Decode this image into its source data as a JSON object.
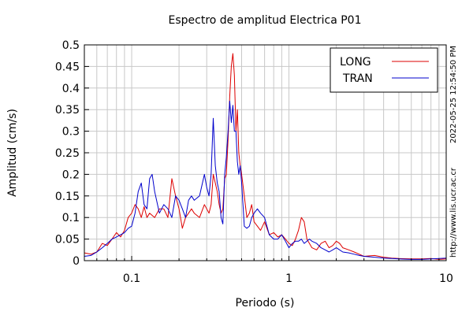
{
  "chart_data": {
    "type": "line",
    "title": "Espectro de amplitud Electrica P01",
    "xlabel": "Periodo (s)",
    "ylabel": "Amplitud (cm/s)",
    "x_scale": "log",
    "xlim": [
      0.05,
      10
    ],
    "ylim": [
      0,
      0.5
    ],
    "x_ticks": [
      {
        "value": 0.1,
        "label": "0.1"
      },
      {
        "value": 1,
        "label": "1"
      },
      {
        "value": 10,
        "label": "10"
      }
    ],
    "y_ticks": [
      {
        "value": 0,
        "label": "0"
      },
      {
        "value": 0.05,
        "label": "0.05"
      },
      {
        "value": 0.1,
        "label": "0.1"
      },
      {
        "value": 0.15,
        "label": "0.15"
      },
      {
        "value": 0.2,
        "label": "0.2"
      },
      {
        "value": 0.25,
        "label": "0.25"
      },
      {
        "value": 0.3,
        "label": "0.3"
      },
      {
        "value": 0.35,
        "label": "0.35"
      },
      {
        "value": 0.4,
        "label": "0.4"
      },
      {
        "value": 0.45,
        "label": "0.45"
      },
      {
        "value": 0.5,
        "label": "0.5"
      }
    ],
    "grid": true,
    "legend_position": "top-right",
    "series": [
      {
        "name": "LONG",
        "color": "#dd0000",
        "x": [
          0.05,
          0.055,
          0.06,
          0.065,
          0.07,
          0.075,
          0.08,
          0.085,
          0.09,
          0.095,
          0.1,
          0.105,
          0.11,
          0.115,
          0.12,
          0.125,
          0.13,
          0.135,
          0.14,
          0.15,
          0.16,
          0.17,
          0.18,
          0.19,
          0.2,
          0.21,
          0.22,
          0.23,
          0.24,
          0.25,
          0.27,
          0.29,
          0.3,
          0.31,
          0.32,
          0.33,
          0.34,
          0.35,
          0.36,
          0.37,
          0.38,
          0.39,
          0.4,
          0.41,
          0.42,
          0.43,
          0.44,
          0.45,
          0.46,
          0.47,
          0.48,
          0.49,
          0.5,
          0.52,
          0.54,
          0.56,
          0.58,
          0.6,
          0.63,
          0.66,
          0.7,
          0.75,
          0.8,
          0.85,
          0.9,
          0.95,
          1.0,
          1.05,
          1.1,
          1.15,
          1.2,
          1.25,
          1.3,
          1.35,
          1.4,
          1.5,
          1.6,
          1.7,
          1.8,
          1.9,
          2.0,
          2.1,
          2.2,
          2.4,
          2.6,
          2.8,
          3.0,
          3.5,
          4.0,
          4.5,
          5.0,
          6.0,
          7.0,
          8.0,
          9.0,
          10.0
        ],
        "values": [
          0.018,
          0.015,
          0.02,
          0.04,
          0.035,
          0.05,
          0.065,
          0.055,
          0.07,
          0.1,
          0.11,
          0.13,
          0.12,
          0.1,
          0.125,
          0.1,
          0.11,
          0.105,
          0.1,
          0.12,
          0.12,
          0.1,
          0.19,
          0.15,
          0.12,
          0.075,
          0.1,
          0.11,
          0.12,
          0.11,
          0.1,
          0.13,
          0.12,
          0.11,
          0.13,
          0.2,
          0.18,
          0.16,
          0.13,
          0.11,
          0.12,
          0.19,
          0.2,
          0.28,
          0.38,
          0.45,
          0.48,
          0.43,
          0.3,
          0.35,
          0.25,
          0.22,
          0.2,
          0.15,
          0.1,
          0.11,
          0.13,
          0.09,
          0.08,
          0.07,
          0.09,
          0.06,
          0.065,
          0.055,
          0.06,
          0.05,
          0.04,
          0.035,
          0.05,
          0.07,
          0.1,
          0.09,
          0.05,
          0.04,
          0.03,
          0.025,
          0.04,
          0.045,
          0.03,
          0.035,
          0.045,
          0.04,
          0.03,
          0.025,
          0.02,
          0.015,
          0.01,
          0.012,
          0.008,
          0.006,
          0.005,
          0.004,
          0.004,
          0.005,
          0.003,
          0.004
        ]
      },
      {
        "name": "TRAN",
        "color": "#0000cc",
        "x": [
          0.05,
          0.055,
          0.06,
          0.065,
          0.07,
          0.075,
          0.08,
          0.085,
          0.09,
          0.095,
          0.1,
          0.105,
          0.11,
          0.115,
          0.12,
          0.125,
          0.13,
          0.135,
          0.14,
          0.15,
          0.16,
          0.17,
          0.18,
          0.19,
          0.2,
          0.21,
          0.22,
          0.23,
          0.24,
          0.25,
          0.27,
          0.29,
          0.3,
          0.31,
          0.32,
          0.33,
          0.34,
          0.35,
          0.36,
          0.37,
          0.38,
          0.39,
          0.4,
          0.41,
          0.42,
          0.43,
          0.44,
          0.45,
          0.46,
          0.47,
          0.48,
          0.49,
          0.5,
          0.52,
          0.54,
          0.56,
          0.58,
          0.6,
          0.63,
          0.66,
          0.7,
          0.75,
          0.8,
          0.85,
          0.9,
          0.95,
          1.0,
          1.05,
          1.1,
          1.15,
          1.2,
          1.25,
          1.3,
          1.35,
          1.4,
          1.5,
          1.6,
          1.7,
          1.8,
          1.9,
          2.0,
          2.1,
          2.2,
          2.4,
          2.6,
          2.8,
          3.0,
          3.5,
          4.0,
          4.5,
          5.0,
          6.0,
          7.0,
          8.0,
          9.0,
          10.0
        ],
        "values": [
          0.01,
          0.012,
          0.02,
          0.03,
          0.04,
          0.05,
          0.055,
          0.06,
          0.065,
          0.075,
          0.08,
          0.11,
          0.16,
          0.18,
          0.13,
          0.12,
          0.19,
          0.2,
          0.16,
          0.11,
          0.13,
          0.12,
          0.1,
          0.15,
          0.14,
          0.12,
          0.1,
          0.14,
          0.15,
          0.14,
          0.15,
          0.2,
          0.17,
          0.15,
          0.2,
          0.33,
          0.22,
          0.18,
          0.16,
          0.1,
          0.085,
          0.2,
          0.24,
          0.3,
          0.37,
          0.32,
          0.36,
          0.3,
          0.3,
          0.23,
          0.2,
          0.22,
          0.18,
          0.08,
          0.075,
          0.08,
          0.1,
          0.11,
          0.12,
          0.11,
          0.1,
          0.06,
          0.05,
          0.05,
          0.06,
          0.045,
          0.03,
          0.04,
          0.045,
          0.045,
          0.05,
          0.04,
          0.045,
          0.05,
          0.045,
          0.04,
          0.03,
          0.025,
          0.02,
          0.025,
          0.03,
          0.025,
          0.02,
          0.018,
          0.015,
          0.012,
          0.01,
          0.008,
          0.006,
          0.005,
          0.004,
          0.003,
          0.003,
          0.004,
          0.005,
          0.006
        ]
      }
    ]
  },
  "side_text": {
    "timestamp": "2022-05-25 12:54:50 PM",
    "url": "http://www.lis.ucr.ac.cr"
  }
}
